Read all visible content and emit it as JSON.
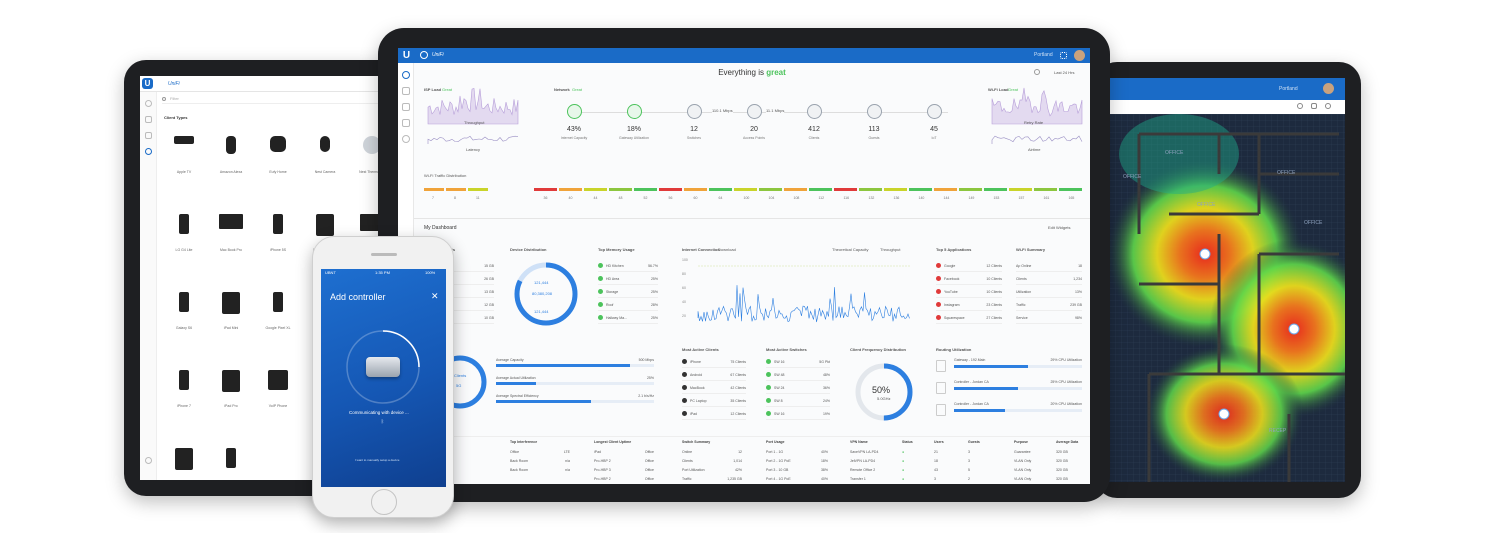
{
  "colors": {
    "brand": "#1a6bc7",
    "good": "#4cc35c",
    "warn": "#f0a33a",
    "bad": "#e03a3a",
    "floor": "#1d2a3e"
  },
  "left_tablet": {
    "app_title": "UniFi",
    "search_placeholder": "Filter",
    "section_title": "Client Types",
    "devices": [
      {
        "label": "Apple TV",
        "icon": "apple-tv-icon"
      },
      {
        "label": "Amazon Alexa",
        "icon": "alexa-icon"
      },
      {
        "label": "Eufy Home",
        "icon": "speaker-icon"
      },
      {
        "label": "Nest Camera",
        "icon": "camera-icon"
      },
      {
        "label": "Nest Thermostat",
        "icon": "thermostat-icon"
      },
      {
        "label": "LG G4 Lite",
        "icon": "phone-icon"
      },
      {
        "label": "Mac Book Pro",
        "icon": "laptop-icon"
      },
      {
        "label": "iPhone 5S",
        "icon": "phone-icon"
      },
      {
        "label": "Sony Xperia Z4",
        "icon": "tablet-icon"
      },
      {
        "label": "iMac 27",
        "icon": "monitor-icon"
      },
      {
        "label": "Galaxy S6",
        "icon": "phone-icon"
      },
      {
        "label": "iPad Mini",
        "icon": "tablet-icon"
      },
      {
        "label": "Google Pixel XL",
        "icon": "phone-icon"
      },
      {
        "label": "Galaxy Tab",
        "icon": "tablet-icon"
      },
      {
        "label": "Google Pixel",
        "icon": "phone-icon"
      },
      {
        "label": "iPhone 7",
        "icon": "phone-icon"
      },
      {
        "label": "iPad Pro",
        "icon": "tablet-icon"
      },
      {
        "label": "VoIP Phone",
        "icon": "voip-icon"
      },
      {
        "label": "LG Optimus",
        "icon": "phone-icon"
      },
      {
        "label": "HTC Desire",
        "icon": "phone-icon"
      },
      {
        "label": "Kindle Paperwhite",
        "icon": "tablet-icon"
      },
      {
        "label": "Lumia 950",
        "icon": "phone-icon"
      }
    ]
  },
  "phone": {
    "carrier": "UBNT",
    "time": "1:35 PM",
    "battery": "100%",
    "title": "Add controller",
    "status": "Communicating with device ...",
    "footer_link": "I want to manually setup a device"
  },
  "center": {
    "app_title": "UniFi",
    "user": "Portland",
    "headline_prefix": "Everything is",
    "headline_status": "great",
    "range": "Last 24 Hrs",
    "isp_title": "ISP Load",
    "isp_status": "Great",
    "isp_chart_labels": [
      "Throughput",
      "Latency"
    ],
    "network_title": "Network",
    "network_status": "Great",
    "network_stats": [
      {
        "value": "43%",
        "label": "Internet Capacity"
      },
      {
        "value": "18%",
        "label": "Gateway Utilization"
      },
      {
        "value": "12",
        "label": "Switches"
      },
      {
        "value": "20",
        "label": "Access Points"
      },
      {
        "value": "412",
        "label": "Clients"
      },
      {
        "value": "113",
        "label": "Guests"
      },
      {
        "value": "45",
        "label": "IoT"
      }
    ],
    "network_link_labels": [
      "110.1 Mbps",
      "11.1 Mbps"
    ],
    "wifi_title": "Wi-Fi Load",
    "wifi_status": "Great",
    "wifi_chart_labels": [
      "Retry Rate",
      "Airtime"
    ],
    "dist_title": "Wi-Fi Traffic Distribution",
    "dist_ticks": [
      "7",
      "8",
      "11"
    ],
    "bar_ticks": [
      "36",
      "40",
      "44",
      "48",
      "52",
      "56",
      "60",
      "64",
      "100",
      "104",
      "108",
      "112",
      "116",
      "132",
      "136",
      "140",
      "144",
      "149",
      "153",
      "157",
      "161",
      "165"
    ],
    "dashboard_label": "My Dashboard",
    "edit_widgets": "Edit Widgets",
    "most_active_aps": {
      "title": "Most Active APs",
      "values": [
        "15 GB",
        "26 GB",
        "13 GB",
        "12 GB",
        "10 GB"
      ]
    },
    "device_distribution": {
      "title": "Device Distribution",
      "lines": [
        "121,444",
        "80,380,208",
        "121,444"
      ]
    },
    "top_memory": {
      "title": "Top Memory Usage",
      "items": [
        {
          "name": "HD Kitchen",
          "value": "56.7%"
        },
        {
          "name": "HD Area",
          "value": "25%"
        },
        {
          "name": "Storage",
          "value": "25%"
        },
        {
          "name": "Roof",
          "value": "28%"
        },
        {
          "name": "Hallway Ma...",
          "value": "25%"
        }
      ]
    },
    "internet_connection": {
      "title": "Internet Connection",
      "mode": "Download",
      "legend": [
        "Theoretical Capacity",
        "Throughput"
      ],
      "yticks": [
        "100",
        "80",
        "60",
        "40",
        "20"
      ]
    },
    "top_applications": {
      "title": "Top 5 Applications",
      "items": [
        {
          "name": "Google",
          "value": "12 Clients"
        },
        {
          "name": "Facebook",
          "value": "10 Clients"
        },
        {
          "name": "YouTube",
          "value": "10 Clients"
        },
        {
          "name": "Instagram",
          "value": "23 Clients"
        },
        {
          "name": "Squarespace",
          "value": "27 Clients"
        }
      ]
    },
    "wifi_summary": {
      "title": "Wi-Fi Summary",
      "items": [
        {
          "name": "Ap Online",
          "value": "18"
        },
        {
          "name": "Clients",
          "value": "1,234"
        },
        {
          "name": "Utilization",
          "value": "13%"
        },
        {
          "name": "Traffic",
          "value": "239 GB"
        },
        {
          "name": "Service",
          "value": "98%"
        }
      ]
    },
    "capacity": {
      "gauge_lines": [
        "Clients",
        "5G"
      ],
      "items": [
        {
          "label": "Average Capacity",
          "value": "500 Mbps",
          "level": 0.85
        },
        {
          "label": "Average Actual Utilization",
          "value": "25%",
          "level": 0.25
        },
        {
          "label": "Average Spectral Efficiency",
          "value": "2.1 b/s/Hz",
          "level": 0.6
        }
      ]
    },
    "most_active_clients": {
      "title": "Most Active Clients",
      "items": [
        {
          "name": "iPhone",
          "value": "75 Clients"
        },
        {
          "name": "Android",
          "value": "67 Clients"
        },
        {
          "name": "MacBook",
          "value": "42 Clients"
        },
        {
          "name": "PC Laptop",
          "value": "35 Clients"
        },
        {
          "name": "iPad",
          "value": "12 Clients"
        }
      ]
    },
    "most_active_switches": {
      "title": "Most Active Switches",
      "items": [
        {
          "name": "SW 16",
          "value": "5G Pkt"
        },
        {
          "name": "SW 48",
          "value": "48%"
        },
        {
          "name": "SW 24",
          "value": "36%"
        },
        {
          "name": "SW 8",
          "value": "24%"
        },
        {
          "name": "SW 16",
          "value": "19%"
        }
      ]
    },
    "frequency": {
      "title": "Client Frequency Distribution",
      "value": "50%",
      "caption": "5.0GHz",
      "level": 0.5
    },
    "routing": {
      "title": "Routing Utilization",
      "items": [
        {
          "name": "Gateway - 192.Main",
          "value": "29% CPU Utilization",
          "level": 0.29
        },
        {
          "name": "Controller - Jordan CA",
          "value": "25% CPU Utilization",
          "level": 0.25
        },
        {
          "name": "Controller - Jordan CA",
          "value": "20% CPU Utilization",
          "level": 0.2
        }
      ]
    },
    "bottom": {
      "top_interference": {
        "title": "Top Interference",
        "items": [
          {
            "name": "Office",
            "value": "LTE"
          },
          {
            "name": "Back Room",
            "value": "n/a"
          },
          {
            "name": "Back Room",
            "value": "n/a"
          }
        ]
      },
      "longest_uptime": {
        "title": "Longest Client Uptime",
        "items": [
          {
            "name": "iPad",
            "value": "Office"
          },
          {
            "name": "Pro-HBP 2",
            "value": "Office"
          },
          {
            "name": "Pro-HBP 3",
            "value": "Office"
          },
          {
            "name": "Pro-HBP 2",
            "value": "Office"
          }
        ]
      },
      "switch_summary": {
        "title": "Switch Summary",
        "items": [
          {
            "name": "Online",
            "value": "12"
          },
          {
            "name": "Clients",
            "value": "1,014"
          },
          {
            "name": "Port Utilization",
            "value": "42%"
          },
          {
            "name": "Traffic",
            "value": "1,235 GB"
          }
        ]
      },
      "port_usage": {
        "title": "Port Usage",
        "items": [
          {
            "name": "Port 1 - 1G",
            "value": "40%"
          },
          {
            "name": "Port 2 - 1G PoE",
            "value": "18%"
          },
          {
            "name": "Port 3 - 10 GB",
            "value": "38%"
          },
          {
            "name": "Port 4 - 1G PoE",
            "value": "40%"
          }
        ]
      },
      "vpn": {
        "headers": [
          "VPN Name",
          "Status",
          "Users",
          "Guests",
          "Purpose",
          "Average Data"
        ],
        "rows": [
          [
            "SaveVPN LA-PD4",
            "●",
            "21",
            "3",
            "Guarantee",
            "320 GB"
          ],
          [
            "JetVPN LA-PD4",
            "●",
            "18",
            "3",
            "VLAN Only",
            "320 GB"
          ],
          [
            "Remote Office 2",
            "●",
            "43",
            "5",
            "VLAN Only",
            "320 GB"
          ],
          [
            "Transfer 1",
            "●",
            "3",
            "2",
            "VLAN Only",
            "320 GB"
          ]
        ]
      }
    }
  },
  "right_tablet": {
    "user": "Portland",
    "room_labels": [
      "OFFICE",
      "OFFICE",
      "OFFICE",
      "OFFICE",
      "OFFICE",
      "RECEP"
    ]
  }
}
